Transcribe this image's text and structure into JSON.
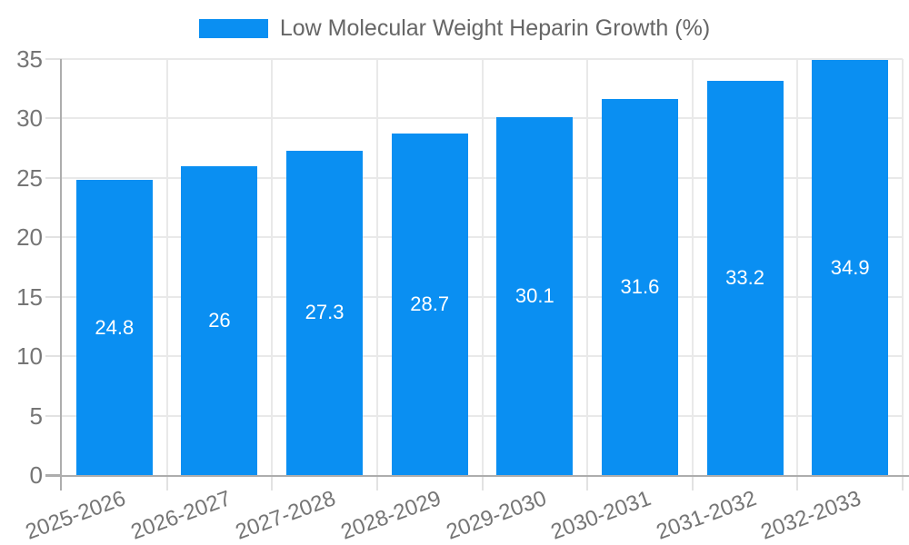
{
  "legend": {
    "label": "Low Molecular Weight Heparin Growth (%)",
    "swatch_color": "#0a8ff2"
  },
  "chart_data": {
    "type": "bar",
    "title": "",
    "xlabel": "",
    "ylabel": "",
    "categories": [
      "2025-2026",
      "2026-2027",
      "2027-2028",
      "2028-2029",
      "2029-2030",
      "2030-2031",
      "2031-2032",
      "2032-2033"
    ],
    "series": [
      {
        "name": "Low Molecular Weight Heparin Growth (%)",
        "values": [
          24.8,
          26,
          27.3,
          28.7,
          30.1,
          31.6,
          33.2,
          34.9
        ],
        "color": "#0a8ff2"
      }
    ],
    "value_labels": [
      "24.8",
      "26",
      "27.3",
      "28.7",
      "30.1",
      "31.6",
      "33.2",
      "34.9"
    ],
    "value_label_color": "#ffffff",
    "ylim": [
      0,
      35
    ],
    "yticks": [
      0,
      5,
      10,
      15,
      20,
      25,
      30,
      35
    ],
    "grid": true,
    "legend_position": "top",
    "x_label_rotation_deg": -20
  },
  "colors": {
    "bar": "#0a8ff2",
    "grid": "#e9e9e9",
    "axis": "#adadad",
    "tick": "#e2e2e2",
    "tick_text": "#757575",
    "legend_text": "#666666",
    "background": "#ffffff"
  }
}
